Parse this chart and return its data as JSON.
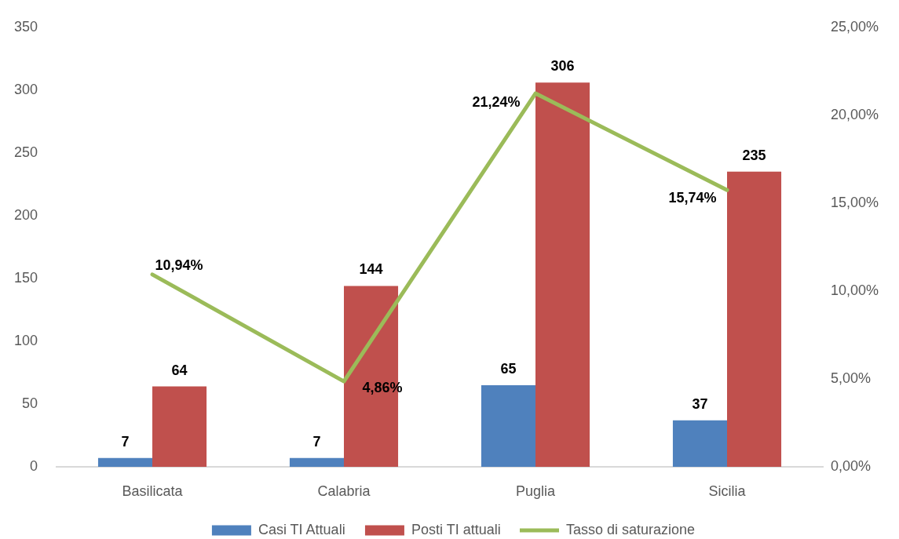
{
  "chart_data": {
    "type": "bar",
    "categories": [
      "Basilicata",
      "Calabria",
      "Puglia",
      "Sicilia"
    ],
    "series": [
      {
        "name": "Casi TI Attuali",
        "color": "#4f81bd",
        "values": [
          7,
          7,
          65,
          37
        ],
        "value_labels": [
          "7",
          "7",
          "65",
          "37"
        ]
      },
      {
        "name": "Posti TI attuali",
        "color": "#c0504d",
        "values": [
          64,
          144,
          306,
          235
        ],
        "value_labels": [
          "64",
          "144",
          "306",
          "235"
        ]
      },
      {
        "name": "Tasso di saturazione",
        "type": "line",
        "axis": "y2",
        "color": "#9bbb59",
        "values": [
          10.94,
          4.86,
          21.24,
          15.74
        ],
        "value_labels": [
          "10,94%",
          "4,86%",
          "21,24%",
          "15,74%"
        ]
      }
    ],
    "ylim": [
      0,
      350
    ],
    "yticks": [
      0,
      50,
      100,
      150,
      200,
      250,
      300,
      350
    ],
    "y2lim": [
      0,
      25
    ],
    "y2ticks": [
      {
        "value": 0,
        "label": "0,00%"
      },
      {
        "value": 5,
        "label": "5,00%"
      },
      {
        "value": 10,
        "label": "10,00%"
      },
      {
        "value": 15,
        "label": "15,00%"
      },
      {
        "value": 20,
        "label": "20,00%"
      },
      {
        "value": 25,
        "label": "25,00%"
      }
    ],
    "grid": false,
    "legend": "bottom",
    "marker": "none"
  }
}
